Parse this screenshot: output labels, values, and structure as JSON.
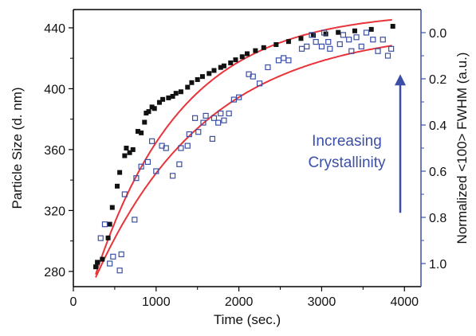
{
  "chart_data": {
    "type": "scatter",
    "xlabel": "Time (sec.)",
    "ylabel_left": "Particle Size (d. nm)",
    "ylabel_right": "Normalized <100> FWHM (a.u.)",
    "xlim": [
      0,
      4200
    ],
    "ylim_left": [
      270,
      452
    ],
    "ylim_right": [
      1.1,
      -0.1
    ],
    "xticks": [
      0,
      1000,
      2000,
      3000,
      4000
    ],
    "yticks_left": [
      280,
      320,
      360,
      400,
      440
    ],
    "yticks_right": [
      "0.0",
      "0.2",
      "0.4",
      "0.6",
      "0.8",
      "1.0"
    ],
    "grid": false,
    "colors": {
      "size_series": "#111111",
      "fwhm_series": "#3b4fa6",
      "fit_curves": "#e8333a",
      "right_axis": "#3b4fa6",
      "annotation": "#3b4fa6"
    },
    "annotation": {
      "lines": [
        "Increasing",
        "Crystallinity"
      ],
      "arrow_from": 0.78,
      "arrow_to": 0.18
    },
    "series": [
      {
        "axis": "left",
        "marker": "filled-square",
        "points": [
          [
            270,
            283
          ],
          [
            290,
            286
          ],
          [
            350,
            288
          ],
          [
            420,
            302
          ],
          [
            440,
            311
          ],
          [
            470,
            322
          ],
          [
            530,
            336
          ],
          [
            560,
            345
          ],
          [
            620,
            356
          ],
          [
            640,
            361
          ],
          [
            680,
            358
          ],
          [
            720,
            360
          ],
          [
            780,
            372
          ],
          [
            820,
            371
          ],
          [
            860,
            378
          ],
          [
            880,
            384
          ],
          [
            910,
            385
          ],
          [
            950,
            388
          ],
          [
            980,
            387
          ],
          [
            1040,
            391
          ],
          [
            1080,
            393
          ],
          [
            1150,
            394
          ],
          [
            1200,
            395
          ],
          [
            1240,
            397
          ],
          [
            1300,
            398
          ],
          [
            1380,
            401
          ],
          [
            1430,
            404
          ],
          [
            1500,
            406
          ],
          [
            1560,
            408
          ],
          [
            1640,
            410
          ],
          [
            1700,
            412
          ],
          [
            1780,
            414
          ],
          [
            1820,
            415
          ],
          [
            1900,
            417
          ],
          [
            1960,
            419
          ],
          [
            2040,
            421
          ],
          [
            2100,
            423
          ],
          [
            2200,
            425
          ],
          [
            2300,
            427
          ],
          [
            2450,
            429
          ],
          [
            2600,
            431
          ],
          [
            2750,
            433
          ],
          [
            2900,
            435
          ],
          [
            3050,
            436
          ],
          [
            3200,
            437
          ],
          [
            3400,
            438
          ],
          [
            3600,
            439
          ],
          [
            3860,
            441
          ]
        ]
      },
      {
        "axis": "right",
        "marker": "open-square",
        "points": [
          [
            330,
            0.89
          ],
          [
            380,
            0.83
          ],
          [
            440,
            1.0
          ],
          [
            480,
            0.97
          ],
          [
            560,
            1.03
          ],
          [
            580,
            0.96
          ],
          [
            620,
            0.7
          ],
          [
            740,
            0.81
          ],
          [
            760,
            0.63
          ],
          [
            820,
            0.58
          ],
          [
            900,
            0.56
          ],
          [
            950,
            0.47
          ],
          [
            1000,
            0.6
          ],
          [
            1070,
            0.49
          ],
          [
            1120,
            0.5
          ],
          [
            1200,
            0.62
          ],
          [
            1280,
            0.57
          ],
          [
            1300,
            0.5
          ],
          [
            1380,
            0.49
          ],
          [
            1400,
            0.44
          ],
          [
            1470,
            0.37
          ],
          [
            1510,
            0.43
          ],
          [
            1570,
            0.39
          ],
          [
            1600,
            0.36
          ],
          [
            1680,
            0.46
          ],
          [
            1700,
            0.37
          ],
          [
            1750,
            0.39
          ],
          [
            1780,
            0.35
          ],
          [
            1820,
            0.38
          ],
          [
            1880,
            0.35
          ],
          [
            1940,
            0.29
          ],
          [
            2000,
            0.28
          ],
          [
            2120,
            0.18
          ],
          [
            2170,
            0.19
          ],
          [
            2250,
            0.22
          ],
          [
            2350,
            0.15
          ],
          [
            2480,
            0.12
          ],
          [
            2540,
            0.11
          ],
          [
            2600,
            0.12
          ],
          [
            2760,
            0.07
          ],
          [
            2820,
            0.06
          ],
          [
            2880,
            0.01
          ],
          [
            2930,
            0.04
          ],
          [
            3000,
            0.06
          ],
          [
            3030,
            0.0
          ],
          [
            3080,
            0.04
          ],
          [
            3100,
            0.07
          ],
          [
            3220,
            0.05
          ],
          [
            3260,
            0.01
          ],
          [
            3330,
            0.03
          ],
          [
            3360,
            0.08
          ],
          [
            3420,
            0.02
          ],
          [
            3480,
            0.06
          ],
          [
            3540,
            0.0
          ],
          [
            3620,
            0.03
          ],
          [
            3680,
            0.08
          ],
          [
            3740,
            0.03
          ],
          [
            3800,
            0.1
          ],
          [
            3840,
            0.07
          ]
        ]
      }
    ]
  }
}
